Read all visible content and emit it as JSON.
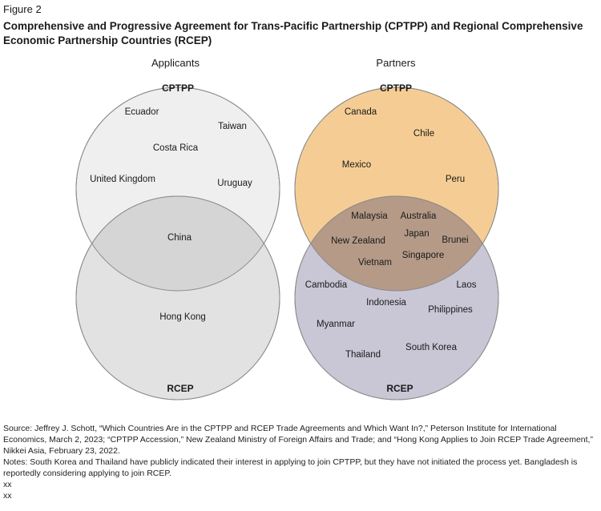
{
  "figure_label": "Figure 2",
  "title": "Comprehensive and Progressive Agreement for Trans-Pacific Partnership (CPTPP) and Regional Comprehensive Economic Partnership Countries (RCEP)",
  "applicants": {
    "heading": "Applicants",
    "top_label": "CPTPP",
    "bottom_label": "RCEP",
    "cptpp_only": [
      "Ecuador",
      "Taiwan",
      "Costa Rica",
      "United Kingdom",
      "Uruguay"
    ],
    "both": [
      "China"
    ],
    "rcep_only": [
      "Hong Kong"
    ]
  },
  "partners": {
    "heading": "Partners",
    "top_label": "CPTPP",
    "bottom_label": "RCEP",
    "cptpp_only": [
      "Canada",
      "Chile",
      "Mexico",
      "Peru"
    ],
    "both": [
      "Malaysia",
      "Australia",
      "Japan",
      "New Zealand",
      "Brunei",
      "Singapore",
      "Vietnam"
    ],
    "rcep_only": [
      "Cambodia",
      "Laos",
      "Indonesia",
      "Philippines",
      "Myanmar",
      "South Korea",
      "Thailand"
    ]
  },
  "colors": {
    "applicant_top_fill": "#efefef",
    "applicant_bottom_fill": "#e2e2e2",
    "applicant_overlap_fill": "#d5d5d5",
    "partner_top_fill": "#f5cd94",
    "partner_bottom_fill": "#c9c6d5",
    "partner_overlap_fill": "#b49a87",
    "outline": "#8a8a8a"
  },
  "source_lines": [
    "Source: Jeffrey J. Schott, “Which Countries Are in the CPTPP and RCEP Trade Agreements and Which Want In?,” Peterson Institute for International Economics, March 2, 2023; “CPTPP Accession,” New Zealand Ministry of Foreign Affairs and Trade; and “Hong Kong Applies to Join RCEP Trade Agreement,” Nikkei Asia, February 23, 2022.",
    "Notes: South Korea and Thailand have publicly indicated their interest in applying to join CPTPP, but they have not initiated the process yet. Bangladesh is reportedly considering applying to join RCEP.",
    "xx",
    "xx"
  ]
}
